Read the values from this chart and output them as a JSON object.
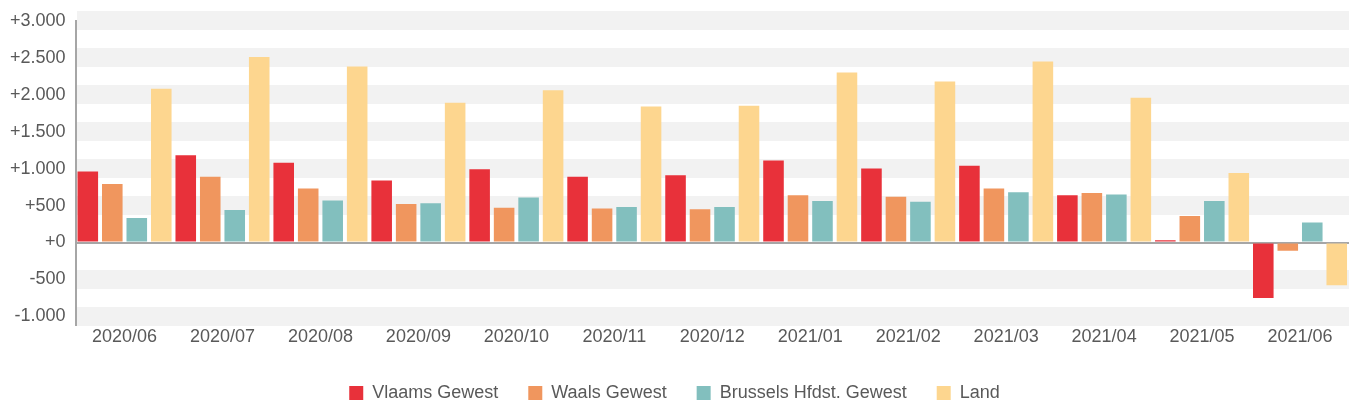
{
  "chart_data": {
    "type": "bar",
    "categories": [
      "2020/06",
      "2020/07",
      "2020/08",
      "2020/09",
      "2020/10",
      "2020/11",
      "2020/12",
      "2021/01",
      "2021/02",
      "2021/03",
      "2021/04",
      "2021/05",
      "2021/06"
    ],
    "series": [
      {
        "name": "Vlaams Gewest",
        "color": "#e8313a",
        "values": [
          960,
          1180,
          1080,
          840,
          990,
          890,
          910,
          1110,
          1000,
          1040,
          640,
          30,
          -750
        ]
      },
      {
        "name": "Waals Gewest",
        "color": "#f0965e",
        "values": [
          790,
          890,
          730,
          520,
          470,
          460,
          450,
          640,
          620,
          730,
          670,
          360,
          -110
        ]
      },
      {
        "name": "Brussels Hfdst. Gewest",
        "color": "#82bfbe",
        "values": [
          330,
          440,
          570,
          530,
          610,
          480,
          480,
          560,
          550,
          680,
          650,
          560,
          270
        ]
      },
      {
        "name": "Land",
        "color": "#fdd68f",
        "values": [
          2080,
          2510,
          2380,
          1890,
          2060,
          1840,
          1850,
          2300,
          2180,
          2450,
          1960,
          940,
          -580
        ]
      }
    ],
    "ylim": [
      -1000,
      3000
    ],
    "yticks": [
      {
        "value": -1000,
        "label": "-1.000"
      },
      {
        "value": -500,
        "label": "-500"
      },
      {
        "value": 0,
        "label": "+0"
      },
      {
        "value": 500,
        "label": "+500"
      },
      {
        "value": 1000,
        "label": "+1.000"
      },
      {
        "value": 1500,
        "label": "+1.500"
      },
      {
        "value": 2000,
        "label": "+2.000"
      },
      {
        "value": 2500,
        "label": "+2.500"
      },
      {
        "value": 3000,
        "label": "+3.000"
      }
    ],
    "grid": "y",
    "legend": "bottom"
  }
}
